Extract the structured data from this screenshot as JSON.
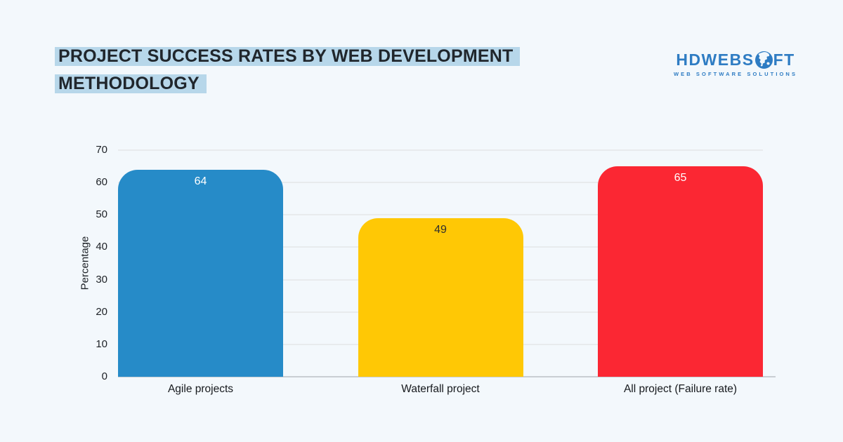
{
  "page": {
    "background_color": "#F3F8FC"
  },
  "header": {
    "title_lines": [
      "PROJECT SUCCESS RATES BY WEB DEVELOPMENT",
      "METHODOLOGY"
    ],
    "title_highlight_color": "#B7D7EA",
    "logo": {
      "text_before_globe_icon": "HDWEBS",
      "text_after_globe_icon": "FT",
      "tagline": "WEB SOFTWARE SOLUTIONS",
      "brand_color": "#2E7CC3"
    }
  },
  "chart_data": {
    "type": "bar",
    "title": "PROJECT SUCCESS RATES BY WEB DEVELOPMENT METHODOLOGY",
    "categories": [
      "Agile projects",
      "Waterfall project",
      "All project (Failure rate)"
    ],
    "values": [
      64,
      49,
      65
    ],
    "bar_colors": [
      "#268BC8",
      "#FFC805",
      "#FB2733"
    ],
    "value_label_colors": [
      "#FFFFFF",
      "#2F2F2F",
      "#FFFFFF"
    ],
    "xlabel": "",
    "ylabel": "Percentage",
    "ylim": [
      0,
      70
    ],
    "yticks": [
      0,
      10,
      20,
      30,
      40,
      50,
      60,
      70
    ],
    "grid": "horizontal-gridlines",
    "gridline_color": "#DEDEDE",
    "legend": "none"
  }
}
